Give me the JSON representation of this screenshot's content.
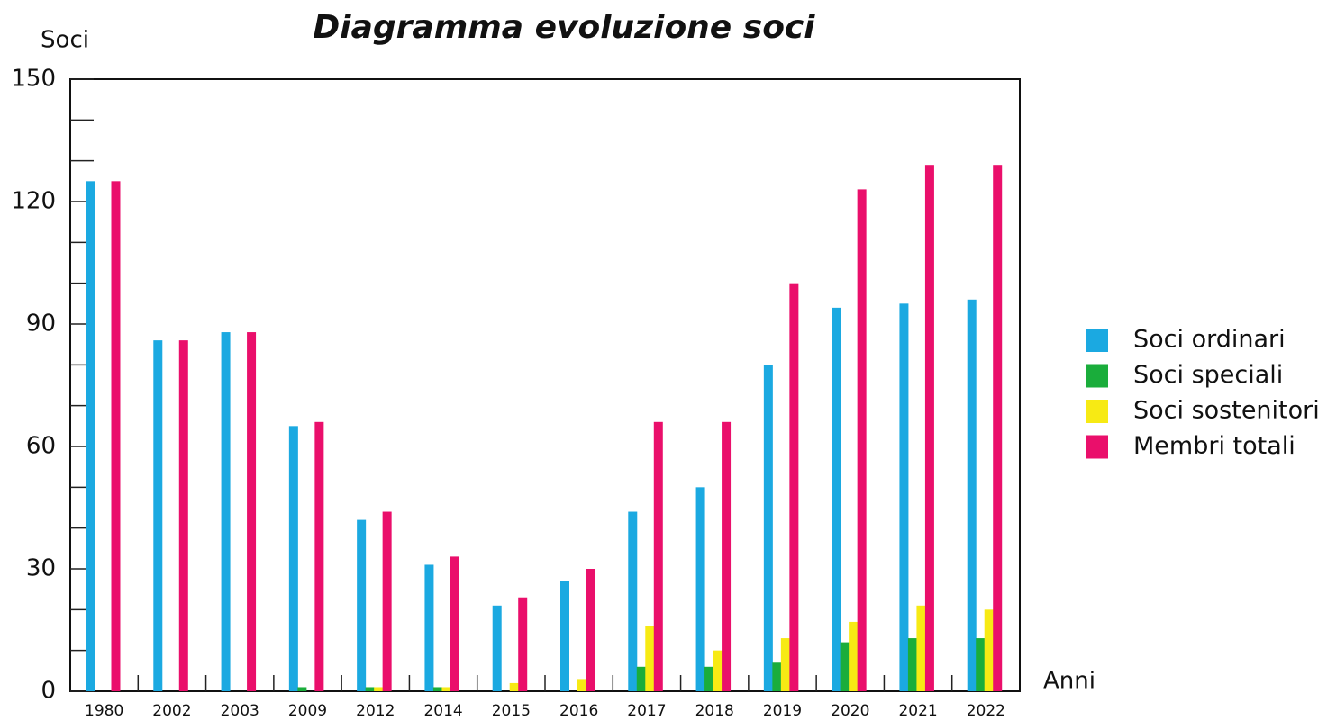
{
  "chart_data": {
    "type": "bar",
    "title": "Diagramma evoluzione soci",
    "y_label": "Soci",
    "x_label": "Anni",
    "categories": [
      "1980",
      "2002",
      "2003",
      "2009",
      "2012",
      "2014",
      "2015",
      "2016",
      "2017",
      "2018",
      "2019",
      "2020",
      "2021",
      "2022"
    ],
    "series": [
      {
        "name": "Soci ordinari",
        "color": "#1ba9e1",
        "values": [
          125,
          86,
          88,
          65,
          42,
          31,
          21,
          27,
          44,
          50,
          80,
          94,
          95,
          96
        ]
      },
      {
        "name": "Soci speciali",
        "color": "#1aad3b",
        "values": [
          0,
          0,
          0,
          1,
          1,
          1,
          0,
          0,
          6,
          6,
          7,
          12,
          13,
          13
        ]
      },
      {
        "name": "Soci sostenitori",
        "color": "#f7ea14",
        "values": [
          0,
          0,
          0,
          0,
          1,
          1,
          2,
          3,
          16,
          10,
          13,
          17,
          21,
          20
        ]
      },
      {
        "name": "Membri totali",
        "color": "#ea0f6b",
        "values": [
          125,
          86,
          88,
          66,
          44,
          33,
          23,
          30,
          66,
          66,
          100,
          123,
          129,
          129
        ]
      }
    ],
    "ylim": [
      0,
      150
    ],
    "yticks": [
      0,
      30,
      60,
      90,
      120,
      150
    ],
    "yminorticks": [
      10,
      20,
      40,
      50,
      70,
      80,
      100,
      110,
      130,
      140
    ],
    "legend": "right"
  }
}
